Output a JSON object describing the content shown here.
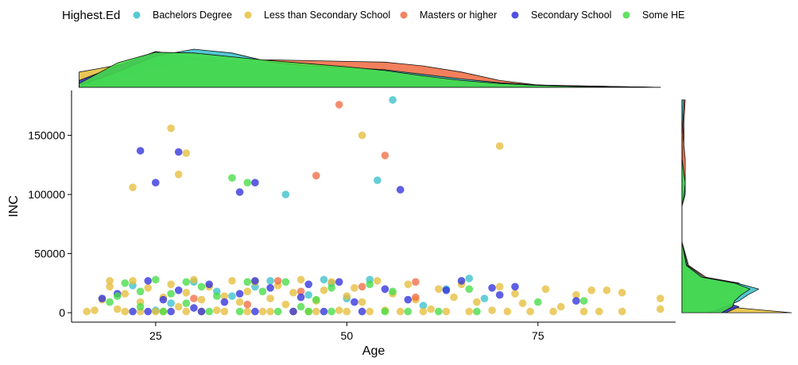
{
  "chart_data": {
    "type": "scatter",
    "title": "",
    "xlabel": "Age",
    "ylabel": "INC",
    "xlim": [
      14,
      93
    ],
    "ylim": [
      -8000,
      188000
    ],
    "x_ticks": [
      25,
      50,
      75
    ],
    "y_ticks": [
      0,
      50000,
      100000,
      150000
    ],
    "y_tick_labels": [
      "0",
      "50000",
      "100000",
      "150000"
    ],
    "legend": {
      "title": "Highest.Ed",
      "position": "top",
      "items": [
        {
          "name": "Bachelors Degree",
          "color": "#3bc0cc"
        },
        {
          "name": "Less than Secondary School",
          "color": "#e6be3c"
        },
        {
          "name": "Masters or higher",
          "color": "#f06e46"
        },
        {
          "name": "Secondary School",
          "color": "#3232dc"
        },
        {
          "name": "Some HE",
          "color": "#46dc46"
        }
      ]
    },
    "series": [
      {
        "name": "Bachelors Degree",
        "points": [
          [
            56,
            180000
          ],
          [
            42,
            100000
          ],
          [
            54,
            112000
          ],
          [
            66,
            29000
          ],
          [
            68,
            12000
          ],
          [
            53,
            28000
          ],
          [
            45,
            15000
          ],
          [
            38,
            22000
          ],
          [
            30,
            26000
          ],
          [
            27,
            8000
          ],
          [
            35,
            14000
          ],
          [
            48,
            25000
          ],
          [
            60,
            6000
          ],
          [
            33,
            18000
          ],
          [
            22,
            23000
          ],
          [
            50,
            12000
          ],
          [
            40,
            27000
          ],
          [
            63,
            20000
          ],
          [
            25,
            2000
          ],
          [
            47,
            28000
          ]
        ]
      },
      {
        "name": "Less than Secondary School",
        "points": [
          [
            27,
            156000
          ],
          [
            52,
            150000
          ],
          [
            70,
            141000
          ],
          [
            29,
            135000
          ],
          [
            28,
            117000
          ],
          [
            22,
            106000
          ],
          [
            91,
            12000
          ],
          [
            91,
            3000
          ],
          [
            86,
            1000
          ],
          [
            86,
            17000
          ],
          [
            84,
            19000
          ],
          [
            82,
            19000
          ],
          [
            80,
            15000
          ],
          [
            78,
            5000
          ],
          [
            76,
            20000
          ],
          [
            73,
            8000
          ],
          [
            72,
            16000
          ],
          [
            70,
            22000
          ],
          [
            69,
            2000
          ],
          [
            67,
            9000
          ],
          [
            65,
            24000
          ],
          [
            64,
            13000
          ],
          [
            62,
            20000
          ],
          [
            61,
            3000
          ],
          [
            59,
            11000
          ],
          [
            58,
            24000
          ],
          [
            56,
            16000
          ],
          [
            55,
            2000
          ],
          [
            54,
            27000
          ],
          [
            52,
            9000
          ],
          [
            51,
            21000
          ],
          [
            50,
            14000
          ],
          [
            49,
            2000
          ],
          [
            48,
            26000
          ],
          [
            47,
            19000
          ],
          [
            46,
            10000
          ],
          [
            45,
            1000
          ],
          [
            44,
            28000
          ],
          [
            43,
            17000
          ],
          [
            42,
            7000
          ],
          [
            41,
            23000
          ],
          [
            40,
            12000
          ],
          [
            39,
            1000
          ],
          [
            38,
            26000
          ],
          [
            37,
            18000
          ],
          [
            36,
            9000
          ],
          [
            35,
            27000
          ],
          [
            34,
            14000
          ],
          [
            33,
            2000
          ],
          [
            32,
            22000
          ],
          [
            31,
            11000
          ],
          [
            30,
            28000
          ],
          [
            29,
            17000
          ],
          [
            28,
            5000
          ],
          [
            27,
            24000
          ],
          [
            26,
            13000
          ],
          [
            25,
            1000
          ],
          [
            24,
            21000
          ],
          [
            23,
            9000
          ],
          [
            22,
            27000
          ],
          [
            21,
            16000
          ],
          [
            20,
            3000
          ],
          [
            19,
            22000
          ],
          [
            18,
            11000
          ],
          [
            17,
            2000
          ],
          [
            16,
            1000
          ],
          [
            19,
            27000
          ],
          [
            21,
            1000
          ],
          [
            23,
            1000
          ],
          [
            26,
            1000
          ],
          [
            29,
            1000
          ],
          [
            31,
            1000
          ],
          [
            34,
            1000
          ],
          [
            37,
            1000
          ],
          [
            40,
            1000
          ],
          [
            43,
            1000
          ],
          [
            46,
            1000
          ],
          [
            50,
            1000
          ],
          [
            53,
            1000
          ],
          [
            57,
            1000
          ],
          [
            60,
            1000
          ],
          [
            63,
            1000
          ],
          [
            66,
            1000
          ],
          [
            71,
            1000
          ],
          [
            74,
            1000
          ],
          [
            77,
            1000
          ],
          [
            81,
            1000
          ],
          [
            83,
            1000
          ]
        ]
      },
      {
        "name": "Masters or higher",
        "points": [
          [
            49,
            176000
          ],
          [
            55,
            133000
          ],
          [
            46,
            116000
          ],
          [
            59,
            13000
          ],
          [
            59,
            26000
          ],
          [
            44,
            18000
          ],
          [
            37,
            7000
          ],
          [
            52,
            22000
          ],
          [
            41,
            27000
          ],
          [
            30,
            12000
          ]
        ]
      },
      {
        "name": "Secondary School",
        "points": [
          [
            23,
            137000
          ],
          [
            28,
            136000
          ],
          [
            25,
            110000
          ],
          [
            38,
            110000
          ],
          [
            36,
            102000
          ],
          [
            57,
            104000
          ],
          [
            72,
            22000
          ],
          [
            70,
            15000
          ],
          [
            69,
            21000
          ],
          [
            65,
            27000
          ],
          [
            63,
            19000
          ],
          [
            58,
            11000
          ],
          [
            55,
            20000
          ],
          [
            49,
            26000
          ],
          [
            44,
            13000
          ],
          [
            40,
            21000
          ],
          [
            38,
            27000
          ],
          [
            36,
            16000
          ],
          [
            34,
            9000
          ],
          [
            32,
            24000
          ],
          [
            30,
            4000
          ],
          [
            28,
            19000
          ],
          [
            26,
            11000
          ],
          [
            24,
            27000
          ],
          [
            22,
            1000
          ],
          [
            20,
            16000
          ],
          [
            18,
            12000
          ],
          [
            38,
            1000
          ],
          [
            43,
            1000
          ],
          [
            47,
            1000
          ],
          [
            52,
            1000
          ],
          [
            31,
            1000
          ],
          [
            27,
            1000
          ],
          [
            24,
            1000
          ],
          [
            80,
            10000
          ],
          [
            45,
            24000
          ],
          [
            51,
            9000
          ]
        ]
      },
      {
        "name": "Some HE",
        "points": [
          [
            35,
            114000
          ],
          [
            37,
            110000
          ],
          [
            81,
            10000
          ],
          [
            75,
            9000
          ],
          [
            66,
            20000
          ],
          [
            56,
            18000
          ],
          [
            53,
            24000
          ],
          [
            48,
            21000
          ],
          [
            46,
            11000
          ],
          [
            42,
            26000
          ],
          [
            39,
            18000
          ],
          [
            37,
            26000
          ],
          [
            33,
            14000
          ],
          [
            31,
            22000
          ],
          [
            29,
            26000
          ],
          [
            27,
            16000
          ],
          [
            25,
            28000
          ],
          [
            23,
            18000
          ],
          [
            21,
            25000
          ],
          [
            20,
            14000
          ],
          [
            19,
            9000
          ],
          [
            26,
            1000
          ],
          [
            32,
            1000
          ],
          [
            36,
            1000
          ],
          [
            41,
            1000
          ],
          [
            45,
            1000
          ],
          [
            48,
            1000
          ],
          [
            55,
            1000
          ],
          [
            58,
            1000
          ],
          [
            62,
            1000
          ],
          [
            67,
            1000
          ],
          [
            44,
            5000
          ],
          [
            29,
            8000
          ],
          [
            23,
            5000
          ]
        ]
      }
    ],
    "marginal_x_density": {
      "axis": "Age",
      "x_values": [
        15,
        20,
        25,
        30,
        35,
        40,
        45,
        50,
        55,
        60,
        65,
        70,
        75,
        80,
        85,
        91
      ],
      "series": [
        {
          "name": "Less than Secondary School",
          "density": [
            0.4,
            0.58,
            0.76,
            0.66,
            0.54,
            0.5,
            0.46,
            0.42,
            0.36,
            0.28,
            0.18,
            0.1,
            0.06,
            0.04,
            0.02,
            0.0
          ]
        },
        {
          "name": "Secondary School",
          "density": [
            0.18,
            0.56,
            0.94,
            0.8,
            0.64,
            0.56,
            0.5,
            0.42,
            0.34,
            0.24,
            0.16,
            0.1,
            0.06,
            0.04,
            0.02,
            0.0
          ]
        },
        {
          "name": "Masters or higher",
          "density": [
            0.04,
            0.2,
            0.54,
            0.7,
            0.68,
            0.72,
            0.7,
            0.68,
            0.66,
            0.56,
            0.4,
            0.18,
            0.06,
            0.02,
            0.01,
            0.0
          ]
        },
        {
          "name": "Bachelors Degree",
          "density": [
            0.04,
            0.4,
            0.82,
            1.0,
            0.9,
            0.66,
            0.56,
            0.52,
            0.46,
            0.34,
            0.22,
            0.12,
            0.06,
            0.03,
            0.01,
            0.0
          ]
        },
        {
          "name": "Some HE",
          "density": [
            0.1,
            0.64,
            0.92,
            0.9,
            0.8,
            0.7,
            0.62,
            0.54,
            0.44,
            0.3,
            0.18,
            0.1,
            0.05,
            0.02,
            0.01,
            0.0
          ]
        }
      ]
    },
    "marginal_y_density": {
      "axis": "INC",
      "y_values": [
        0,
        5000,
        10000,
        15000,
        20000,
        25000,
        30000,
        40000,
        60000,
        90000,
        100000,
        110000,
        130000,
        150000,
        180000
      ],
      "series": [
        {
          "name": "Less than Secondary School",
          "density": [
            1.0,
            0.4,
            0.26,
            0.32,
            0.36,
            0.3,
            0.12,
            0.02,
            0.0,
            0.0,
            0.01,
            0.01,
            0.01,
            0.02,
            0.01
          ]
        },
        {
          "name": "Secondary School",
          "density": [
            0.4,
            0.52,
            0.36,
            0.42,
            0.56,
            0.46,
            0.16,
            0.03,
            0.0,
            0.0,
            0.02,
            0.02,
            0.01,
            0.0,
            0.0
          ]
        },
        {
          "name": "Masters or higher",
          "density": [
            0.2,
            0.3,
            0.42,
            0.52,
            0.56,
            0.52,
            0.22,
            0.06,
            0.0,
            0.0,
            0.0,
            0.03,
            0.03,
            0.01,
            0.03
          ]
        },
        {
          "name": "Bachelors Degree",
          "density": [
            0.24,
            0.4,
            0.52,
            0.6,
            0.7,
            0.5,
            0.2,
            0.05,
            0.0,
            0.0,
            0.03,
            0.03,
            0.0,
            0.0,
            0.02
          ]
        },
        {
          "name": "Some HE",
          "density": [
            0.36,
            0.46,
            0.48,
            0.54,
            0.62,
            0.48,
            0.18,
            0.04,
            0.0,
            0.0,
            0.02,
            0.03,
            0.0,
            0.0,
            0.0
          ]
        }
      ]
    }
  }
}
